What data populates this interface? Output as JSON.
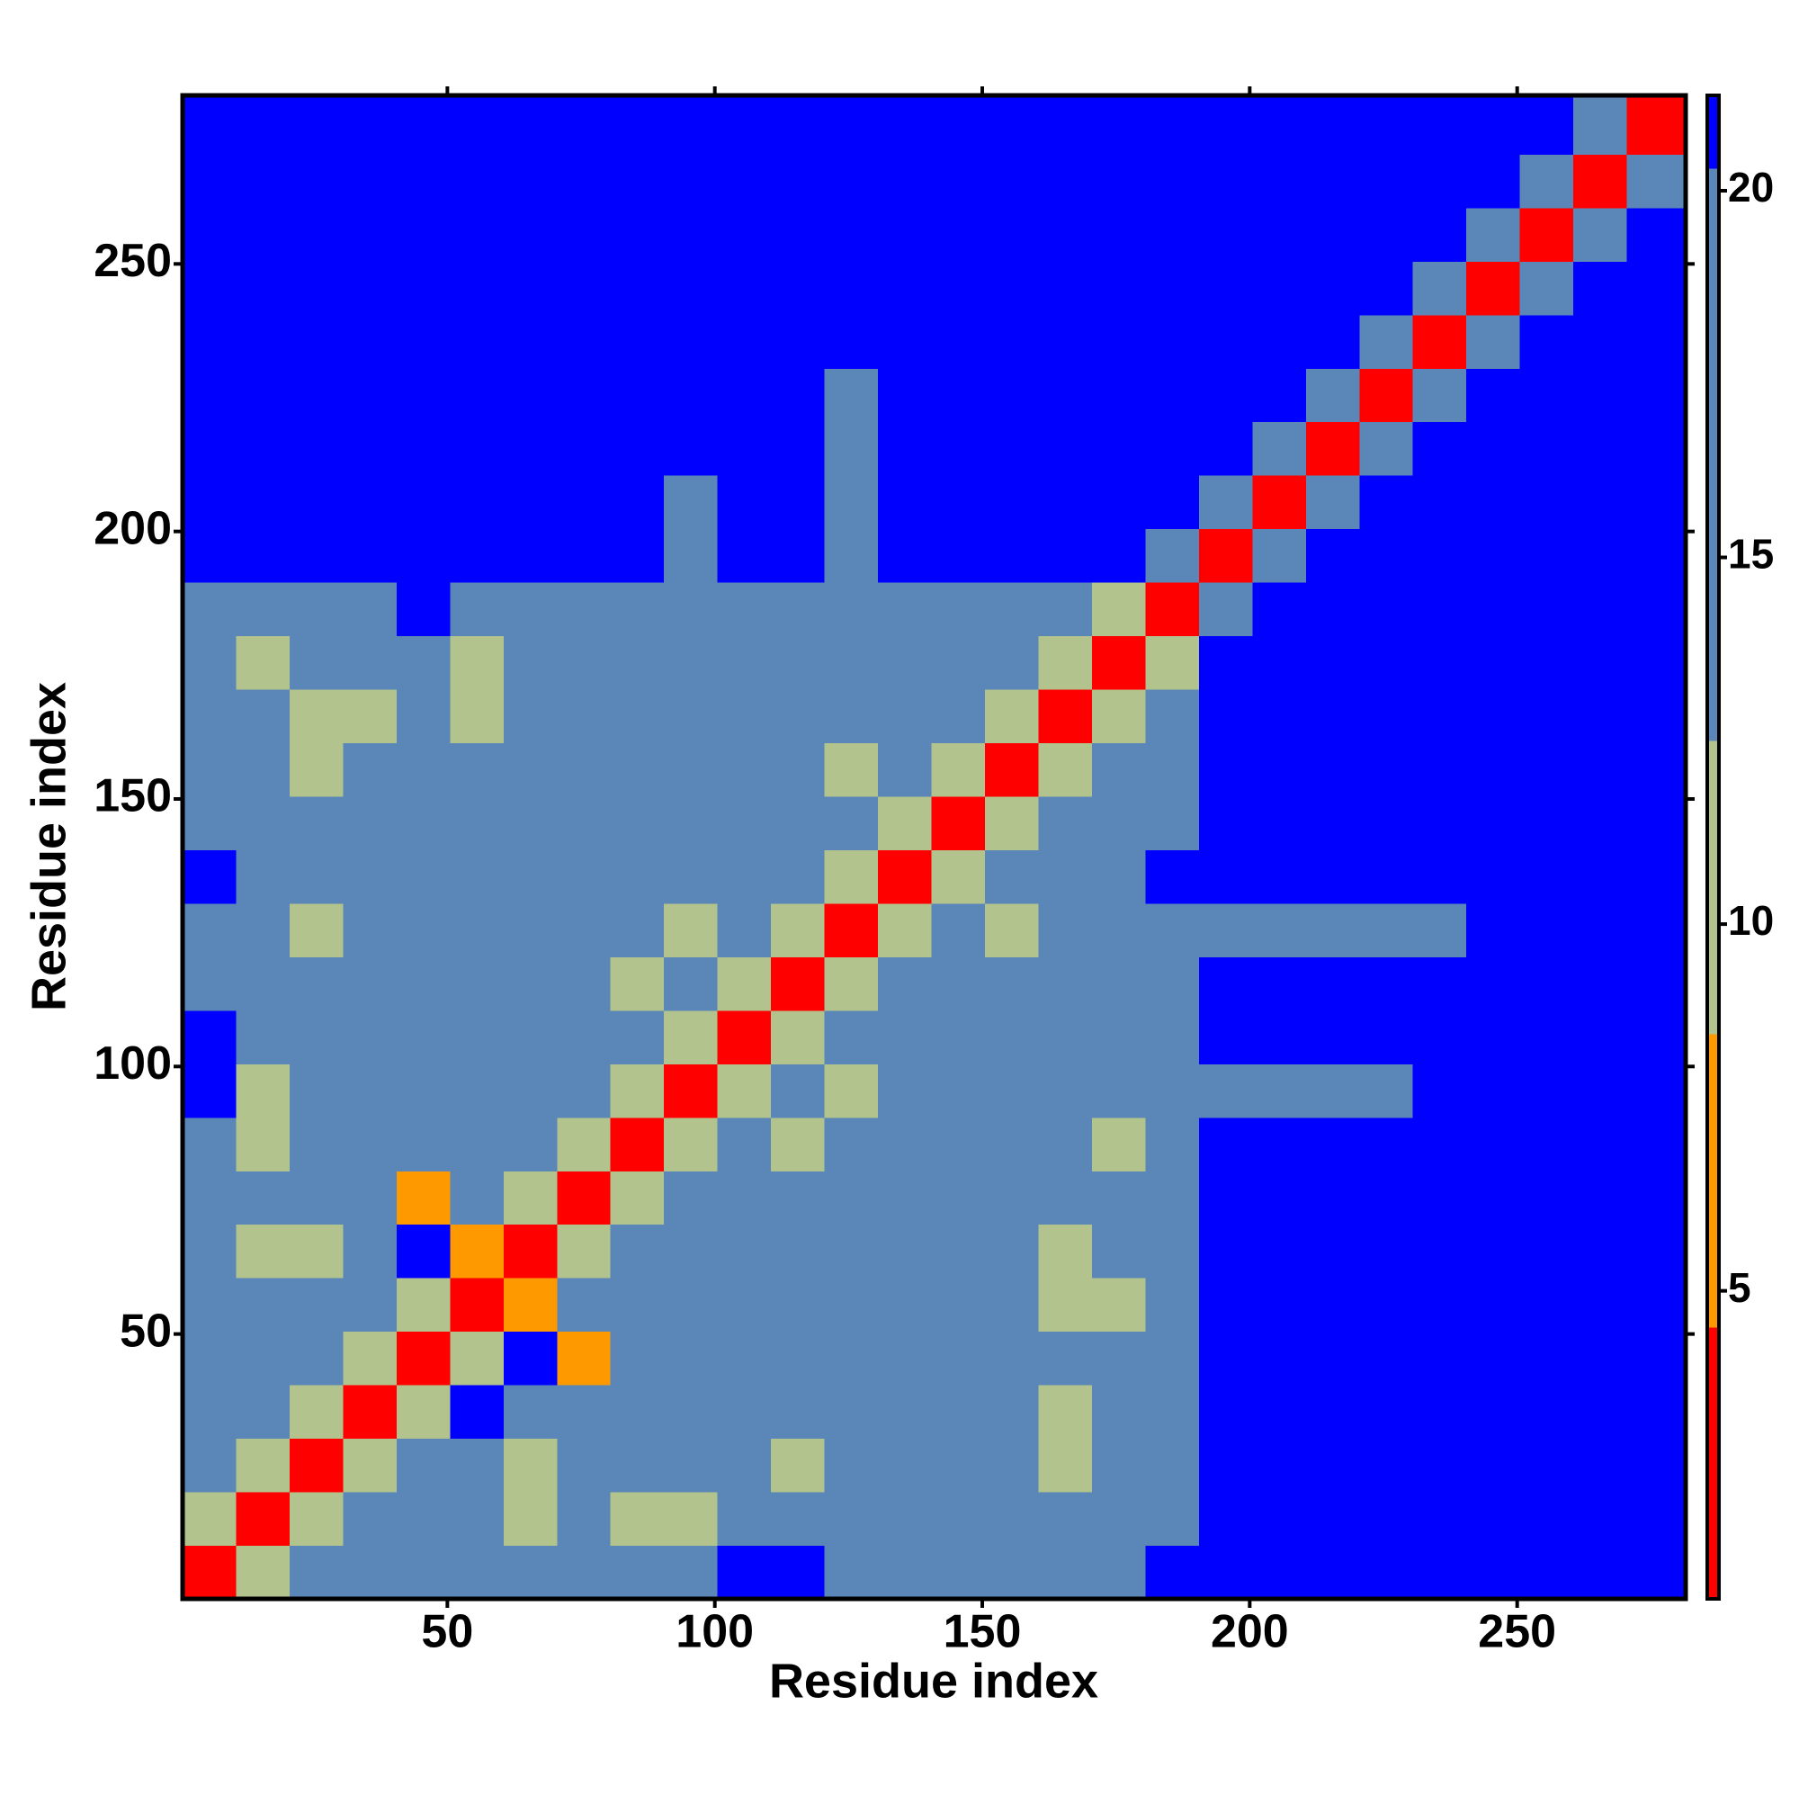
{
  "chart_data": {
    "type": "heatmap",
    "xlabel": "Residue index",
    "ylabel": "Residue index",
    "xlim": [
      0.5,
      281.5
    ],
    "ylim": [
      0.5,
      281.5
    ],
    "xticks": [
      50,
      100,
      150,
      200,
      250
    ],
    "yticks": [
      50,
      100,
      150,
      200,
      250
    ],
    "x_bins": [
      0.5,
      10.5,
      20.5,
      30.5,
      40.5,
      50.5,
      60.5,
      70.5,
      80.5,
      90.5,
      100.5,
      110.5,
      120.5,
      130.5,
      140.5,
      150.5,
      160.5,
      170.5,
      180.5,
      190.5,
      200.5,
      210.5,
      220.5,
      230.5,
      240.5,
      250.5,
      260.5,
      270.5,
      281.5
    ],
    "y_bins": [
      0.5,
      10.5,
      20.5,
      30.5,
      40.5,
      50.5,
      60.5,
      70.5,
      80.5,
      90.5,
      100.5,
      110.5,
      120.5,
      130.5,
      140.5,
      150.5,
      160.5,
      170.5,
      180.5,
      190.5,
      200.5,
      210.5,
      220.5,
      230.5,
      240.5,
      250.5,
      260.5,
      270.5,
      281.5
    ],
    "values": [
      [
        4,
        11,
        16,
        16,
        16,
        16,
        16,
        16,
        16,
        16,
        20.5,
        20.5,
        16,
        16,
        16,
        16,
        16,
        16,
        21,
        21,
        21,
        21,
        21,
        21,
        21,
        21,
        21,
        21
      ],
      [
        11,
        4,
        11,
        16,
        16,
        16,
        10,
        16,
        11,
        11,
        16,
        16,
        16,
        16,
        16,
        16,
        16,
        16,
        18,
        21,
        21,
        21,
        21,
        21,
        21,
        21,
        21,
        21
      ],
      [
        16,
        11,
        4,
        11,
        16,
        16,
        10,
        16,
        16,
        16,
        16,
        12,
        16,
        16,
        16,
        16,
        12,
        16,
        18,
        21,
        21,
        21,
        21,
        21,
        21,
        21,
        21,
        21
      ],
      [
        16,
        16,
        11,
        4,
        11,
        20.5,
        16,
        16,
        16,
        16,
        16,
        16,
        16,
        16,
        16,
        16,
        12,
        16,
        18,
        21,
        21,
        21,
        21,
        21,
        21,
        21,
        21,
        21
      ],
      [
        16,
        16,
        16,
        11,
        4,
        11,
        20.5,
        8,
        16,
        16,
        16,
        16,
        16,
        16,
        16,
        16,
        16,
        16,
        18,
        21,
        21,
        21,
        21,
        21,
        21,
        21,
        21,
        21
      ],
      [
        16,
        16,
        16,
        16,
        11,
        4,
        8,
        16,
        16,
        16,
        16,
        16,
        16,
        16,
        16,
        16,
        12,
        12,
        18,
        21,
        21,
        21,
        21,
        21,
        21,
        21,
        21,
        21
      ],
      [
        16,
        10,
        10,
        16,
        20.5,
        8,
        4,
        11,
        16,
        16,
        16,
        16,
        16,
        16,
        16,
        16,
        12,
        16,
        18,
        21,
        21,
        21,
        21,
        21,
        21,
        21,
        21,
        21
      ],
      [
        16,
        16,
        16,
        16,
        8,
        16,
        11,
        4,
        11,
        16,
        16,
        16,
        16,
        16,
        16,
        16,
        16,
        16,
        18,
        21,
        21,
        21,
        21,
        21,
        21,
        21,
        21,
        21
      ],
      [
        16,
        11,
        16,
        16,
        16,
        16,
        16,
        11,
        4,
        11,
        16,
        10,
        16,
        16,
        16,
        16,
        16,
        12,
        18,
        21,
        21,
        21,
        21,
        21,
        21,
        21,
        21,
        21
      ],
      [
        20.5,
        11,
        16,
        16,
        16,
        16,
        16,
        16,
        11,
        4,
        11,
        16,
        10,
        16,
        16,
        16,
        16,
        16,
        18,
        19,
        19,
        19,
        19,
        21,
        21,
        21,
        21,
        21
      ],
      [
        20.5,
        16,
        16,
        16,
        16,
        16,
        16,
        16,
        16,
        11,
        4,
        11,
        16,
        16,
        16,
        16,
        16,
        16,
        18,
        21,
        21,
        21,
        21,
        21,
        21,
        21,
        21,
        21
      ],
      [
        16,
        16,
        16,
        16,
        16,
        16,
        16,
        16,
        10,
        16,
        11,
        4,
        11,
        16,
        16,
        16,
        16,
        16,
        18,
        21,
        21,
        21,
        21,
        21,
        21,
        21,
        21,
        21
      ],
      [
        16,
        16,
        11,
        16,
        16,
        16,
        16,
        16,
        16,
        10,
        16,
        11,
        4,
        11,
        16,
        10,
        16,
        16,
        18,
        19,
        19,
        19,
        19,
        19,
        21,
        21,
        21,
        21
      ],
      [
        20.5,
        16,
        16,
        16,
        16,
        16,
        16,
        16,
        16,
        16,
        16,
        16,
        11,
        4,
        11,
        16,
        16,
        16,
        20.5,
        21,
        21,
        21,
        21,
        21,
        21,
        21,
        21,
        21
      ],
      [
        16,
        16,
        16,
        16,
        16,
        16,
        16,
        16,
        16,
        16,
        16,
        16,
        16,
        11,
        4,
        11,
        16,
        16,
        18,
        21,
        21,
        21,
        21,
        21,
        21,
        21,
        21,
        21
      ],
      [
        16,
        16,
        12,
        16,
        16,
        16,
        16,
        16,
        16,
        16,
        16,
        16,
        10,
        16,
        11,
        4,
        11,
        16,
        18,
        21,
        21,
        21,
        21,
        21,
        21,
        21,
        21,
        21
      ],
      [
        16,
        16,
        12,
        12,
        16,
        12,
        16,
        16,
        16,
        16,
        16,
        16,
        16,
        16,
        16,
        11,
        4,
        11,
        18,
        21,
        21,
        21,
        21,
        21,
        21,
        21,
        21,
        21
      ],
      [
        16,
        12,
        16,
        16,
        16,
        12,
        16,
        16,
        16,
        16,
        16,
        16,
        16,
        16,
        16,
        16,
        11,
        4,
        11,
        21,
        21,
        21,
        21,
        21,
        21,
        21,
        21,
        21
      ],
      [
        18,
        18,
        18,
        18,
        20.5,
        18,
        18,
        18,
        18,
        18,
        18,
        18,
        18,
        18,
        18,
        18,
        18,
        11,
        4,
        13,
        21,
        21,
        21,
        21,
        21,
        21,
        21,
        21
      ],
      [
        21,
        21,
        21,
        21,
        21,
        21,
        21,
        21,
        21,
        19,
        21,
        21,
        19,
        21,
        21,
        21,
        21,
        21,
        13,
        4,
        13,
        21,
        21,
        21,
        21,
        21,
        21,
        21
      ],
      [
        21,
        21,
        21,
        21,
        21,
        21,
        21,
        21,
        21,
        19,
        21,
        21,
        19,
        21,
        21,
        21,
        21,
        21,
        21,
        13,
        4,
        13,
        21,
        21,
        21,
        21,
        21,
        21
      ],
      [
        21,
        21,
        21,
        21,
        21,
        21,
        21,
        21,
        21,
        21,
        21,
        21,
        19,
        21,
        21,
        21,
        21,
        21,
        21,
        21,
        13,
        4,
        13,
        21,
        21,
        21,
        21,
        21
      ],
      [
        21,
        21,
        21,
        21,
        21,
        21,
        21,
        21,
        21,
        21,
        21,
        21,
        19,
        21,
        21,
        21,
        21,
        21,
        21,
        21,
        21,
        13,
        4,
        13,
        21,
        21,
        21,
        21
      ],
      [
        21,
        21,
        21,
        21,
        21,
        21,
        21,
        21,
        21,
        21,
        21,
        21,
        21,
        21,
        21,
        21,
        21,
        21,
        21,
        21,
        21,
        21,
        13,
        4,
        13,
        21,
        21,
        21
      ],
      [
        21,
        21,
        21,
        21,
        21,
        21,
        21,
        21,
        21,
        21,
        21,
        21,
        21,
        21,
        21,
        21,
        21,
        21,
        21,
        21,
        21,
        21,
        21,
        13,
        4,
        13,
        21,
        21
      ],
      [
        21,
        21,
        21,
        21,
        21,
        21,
        21,
        21,
        21,
        21,
        21,
        21,
        21,
        21,
        21,
        21,
        21,
        21,
        21,
        21,
        21,
        21,
        21,
        21,
        13,
        4,
        13,
        21
      ],
      [
        21,
        21,
        21,
        21,
        21,
        21,
        21,
        21,
        21,
        21,
        21,
        21,
        21,
        21,
        21,
        21,
        21,
        21,
        21,
        21,
        21,
        21,
        21,
        21,
        21,
        13,
        4,
        13
      ],
      [
        21,
        21,
        21,
        21,
        21,
        21,
        21,
        21,
        21,
        21,
        21,
        21,
        21,
        21,
        21,
        21,
        21,
        21,
        21,
        21,
        21,
        21,
        21,
        21,
        21,
        21,
        13,
        4
      ]
    ],
    "colorbar": {
      "zlim": [
        0.8,
        21.3
      ],
      "ticks": [
        5,
        10,
        15,
        20
      ],
      "bands": [
        {
          "from": 0.8,
          "to": 4.5,
          "color": "#ff0000"
        },
        {
          "from": 4.5,
          "to": 8.5,
          "color": "#ff9900"
        },
        {
          "from": 8.5,
          "to": 12.5,
          "color": "#b3c38d"
        },
        {
          "from": 12.5,
          "to": 20.3,
          "color": "#5a87b8"
        },
        {
          "from": 20.3,
          "to": 21.3,
          "color": "#0000ff"
        }
      ]
    }
  }
}
